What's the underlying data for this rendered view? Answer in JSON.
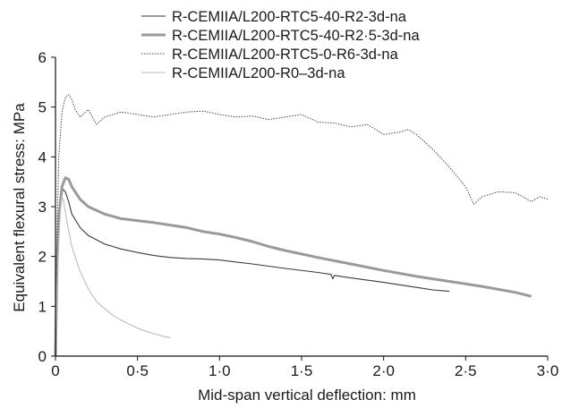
{
  "chart_data": {
    "type": "line",
    "xlabel": "Mid-span vertical deflection: mm",
    "ylabel": "Equivalent flexural stress: MPa",
    "xlim": [
      0,
      3.0
    ],
    "ylim": [
      0,
      6
    ],
    "x_ticks": [
      0,
      0.5,
      1.0,
      1.5,
      2.0,
      2.5,
      3.0
    ],
    "x_tick_labels": [
      "0",
      "0·5",
      "1·0",
      "1·5",
      "2·0",
      "2·5",
      "3·0"
    ],
    "y_ticks": [
      0,
      1,
      2,
      3,
      4,
      5,
      6
    ],
    "y_tick_labels": [
      "0",
      "1",
      "2",
      "3",
      "4",
      "5",
      "6"
    ],
    "grid": false,
    "legend_position": "top-center",
    "series": [
      {
        "name": "R-CEMIIA/L200-RTC5-40-R2-3d-na",
        "color": "#3a3a3a",
        "style": "thin-solid",
        "points": [
          [
            0,
            0
          ],
          [
            0.01,
            1.6
          ],
          [
            0.02,
            2.6
          ],
          [
            0.03,
            3.1
          ],
          [
            0.045,
            3.35
          ],
          [
            0.06,
            3.3
          ],
          [
            0.08,
            3.1
          ],
          [
            0.1,
            2.85
          ],
          [
            0.15,
            2.58
          ],
          [
            0.2,
            2.42
          ],
          [
            0.3,
            2.25
          ],
          [
            0.4,
            2.15
          ],
          [
            0.5,
            2.08
          ],
          [
            0.6,
            2.02
          ],
          [
            0.7,
            1.98
          ],
          [
            0.8,
            1.96
          ],
          [
            0.9,
            1.95
          ],
          [
            1.0,
            1.93
          ],
          [
            1.2,
            1.85
          ],
          [
            1.4,
            1.76
          ],
          [
            1.6,
            1.68
          ],
          [
            1.68,
            1.64
          ],
          [
            1.69,
            1.55
          ],
          [
            1.7,
            1.62
          ],
          [
            1.8,
            1.57
          ],
          [
            2.0,
            1.48
          ],
          [
            2.2,
            1.38
          ],
          [
            2.3,
            1.33
          ],
          [
            2.4,
            1.3
          ]
        ]
      },
      {
        "name": "R-CEMIIA/L200-RTC5-40-R2·5-3d-na",
        "color": "#9a9a9a",
        "style": "thick-solid",
        "points": [
          [
            0,
            0
          ],
          [
            0.01,
            1.8
          ],
          [
            0.02,
            2.8
          ],
          [
            0.04,
            3.4
          ],
          [
            0.06,
            3.58
          ],
          [
            0.08,
            3.55
          ],
          [
            0.1,
            3.4
          ],
          [
            0.15,
            3.15
          ],
          [
            0.2,
            3.0
          ],
          [
            0.3,
            2.85
          ],
          [
            0.4,
            2.76
          ],
          [
            0.5,
            2.72
          ],
          [
            0.6,
            2.68
          ],
          [
            0.7,
            2.63
          ],
          [
            0.8,
            2.58
          ],
          [
            0.9,
            2.5
          ],
          [
            1.0,
            2.45
          ],
          [
            1.1,
            2.38
          ],
          [
            1.2,
            2.3
          ],
          [
            1.3,
            2.2
          ],
          [
            1.4,
            2.12
          ],
          [
            1.5,
            2.05
          ],
          [
            1.6,
            1.98
          ],
          [
            1.8,
            1.85
          ],
          [
            2.0,
            1.72
          ],
          [
            2.2,
            1.6
          ],
          [
            2.4,
            1.5
          ],
          [
            2.6,
            1.4
          ],
          [
            2.8,
            1.28
          ],
          [
            2.9,
            1.2
          ]
        ]
      },
      {
        "name": "R-CEMIIA/L200-RTC5-0-R6-3d-na",
        "color": "#444444",
        "style": "thin-dotted",
        "points": [
          [
            0,
            0
          ],
          [
            0.01,
            2.5
          ],
          [
            0.02,
            4.0
          ],
          [
            0.04,
            4.9
          ],
          [
            0.06,
            5.2
          ],
          [
            0.08,
            5.25
          ],
          [
            0.1,
            5.15
          ],
          [
            0.12,
            4.95
          ],
          [
            0.15,
            4.8
          ],
          [
            0.2,
            4.95
          ],
          [
            0.25,
            4.65
          ],
          [
            0.3,
            4.8
          ],
          [
            0.35,
            4.85
          ],
          [
            0.4,
            4.9
          ],
          [
            0.5,
            4.85
          ],
          [
            0.6,
            4.8
          ],
          [
            0.7,
            4.85
          ],
          [
            0.8,
            4.9
          ],
          [
            0.9,
            4.92
          ],
          [
            1.0,
            4.85
          ],
          [
            1.1,
            4.8
          ],
          [
            1.2,
            4.82
          ],
          [
            1.3,
            4.75
          ],
          [
            1.4,
            4.8
          ],
          [
            1.5,
            4.85
          ],
          [
            1.6,
            4.7
          ],
          [
            1.7,
            4.68
          ],
          [
            1.8,
            4.6
          ],
          [
            1.9,
            4.65
          ],
          [
            2.0,
            4.45
          ],
          [
            2.1,
            4.5
          ],
          [
            2.15,
            4.55
          ],
          [
            2.2,
            4.45
          ],
          [
            2.3,
            4.15
          ],
          [
            2.4,
            3.8
          ],
          [
            2.5,
            3.4
          ],
          [
            2.55,
            3.05
          ],
          [
            2.6,
            3.2
          ],
          [
            2.7,
            3.3
          ],
          [
            2.8,
            3.28
          ],
          [
            2.85,
            3.2
          ],
          [
            2.9,
            3.1
          ],
          [
            2.95,
            3.2
          ],
          [
            3.0,
            3.15
          ]
        ]
      },
      {
        "name": "R-CEMIIA/L200-R0–3d-na",
        "color": "#bdbdbd",
        "style": "thin-solid",
        "points": [
          [
            0,
            0
          ],
          [
            0.01,
            1.5
          ],
          [
            0.02,
            2.3
          ],
          [
            0.03,
            2.9
          ],
          [
            0.04,
            3.2
          ],
          [
            0.05,
            3.1
          ],
          [
            0.07,
            2.7
          ],
          [
            0.1,
            2.2
          ],
          [
            0.15,
            1.7
          ],
          [
            0.2,
            1.35
          ],
          [
            0.25,
            1.1
          ],
          [
            0.3,
            0.95
          ],
          [
            0.35,
            0.82
          ],
          [
            0.4,
            0.72
          ],
          [
            0.45,
            0.64
          ],
          [
            0.5,
            0.56
          ],
          [
            0.55,
            0.5
          ],
          [
            0.6,
            0.45
          ],
          [
            0.65,
            0.4
          ],
          [
            0.7,
            0.37
          ]
        ]
      }
    ]
  }
}
